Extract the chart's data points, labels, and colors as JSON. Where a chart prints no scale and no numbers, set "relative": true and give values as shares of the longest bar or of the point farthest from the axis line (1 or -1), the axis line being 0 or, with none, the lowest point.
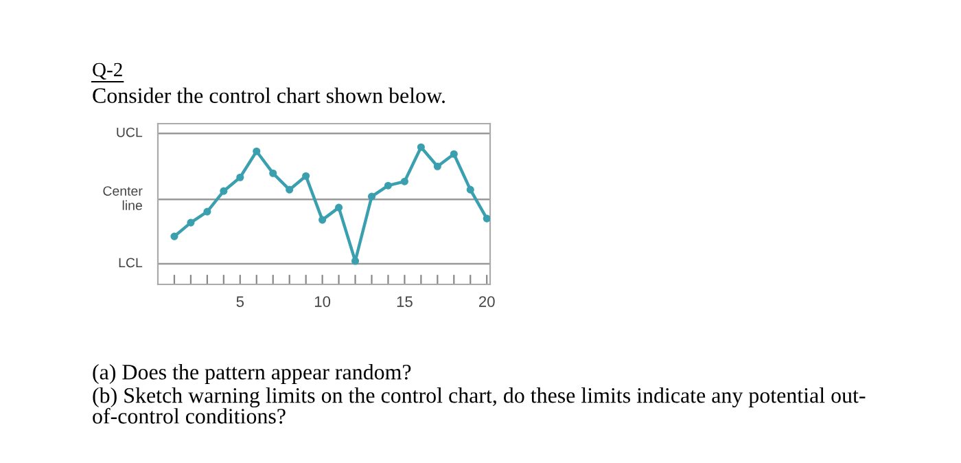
{
  "chart_data": {
    "type": "line",
    "title": "Q-2",
    "subtitle": "Consider the control chart shown below.",
    "relative": true,
    "x": [
      1,
      2,
      3,
      4,
      5,
      6,
      7,
      8,
      9,
      10,
      11,
      12,
      13,
      14,
      15,
      16,
      17,
      18,
      19,
      20
    ],
    "series": [
      {
        "color": "#3a9fae",
        "values": [
          0.35,
          0.45,
          0.53,
          0.68,
          0.78,
          0.97,
          0.81,
          0.69,
          0.79,
          0.47,
          0.56,
          0.17,
          0.64,
          0.72,
          0.75,
          1,
          0.86,
          0.95,
          0.69,
          0.48
        ]
      }
    ],
    "xlim": [
      0,
      20.2
    ],
    "xticks": [
      {
        "value": 1,
        "label": null
      },
      {
        "value": 2,
        "label": null
      },
      {
        "value": 3,
        "label": null
      },
      {
        "value": 4,
        "label": null
      },
      5,
      {
        "value": 6,
        "label": null
      },
      {
        "value": 7,
        "label": null
      },
      {
        "value": 8,
        "label": null
      },
      {
        "value": 9,
        "label": null
      },
      10,
      {
        "value": 11,
        "label": null
      },
      {
        "value": 12,
        "label": null
      },
      {
        "value": 13,
        "label": null
      },
      {
        "value": 14,
        "label": null
      },
      15,
      {
        "value": 16,
        "label": null
      },
      {
        "value": 17,
        "label": null
      },
      {
        "value": 18,
        "label": null
      },
      {
        "value": 19,
        "label": null
      },
      20
    ],
    "ref_lines": [
      {
        "axis": "y",
        "value": 1.1,
        "label": "UCL",
        "color": "#999999"
      },
      {
        "axis": "y",
        "value": 0.62,
        "label": "Center\nline",
        "color": "#999999"
      },
      {
        "axis": "y",
        "value": 0.15,
        "label": "LCL",
        "color": "#999999"
      }
    ],
    "marker": "circle",
    "line_style": "solid",
    "annotations": [
      "(a) Does the pattern appear random?",
      "(b) Sketch warning limits on the control chart, do these limits indicate any potential out-\nof-control conditions?"
    ]
  }
}
